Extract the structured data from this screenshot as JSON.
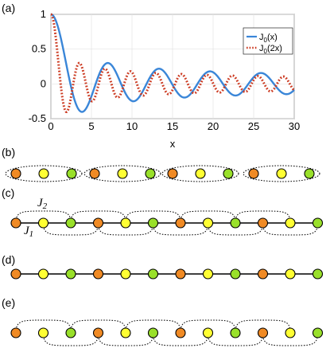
{
  "panels": {
    "a": "(a)",
    "b": "(b)",
    "c": "(c)",
    "d": "(d)",
    "e": "(e)"
  },
  "couplings": {
    "j1": "J",
    "j1_sub": "1",
    "j2": "J",
    "j2_sub": "2"
  },
  "colors": {
    "orange": "#f08a24",
    "yellow": "#ffff33",
    "green": "#99e02a",
    "series1": "#3a86d8",
    "series2": "#cc3b22"
  },
  "chart_data": {
    "type": "line",
    "xlabel": "x",
    "ylabel": "",
    "xlim": [
      0,
      30
    ],
    "ylim": [
      -0.5,
      1
    ],
    "xticks": [
      "0",
      "5",
      "10",
      "15",
      "20",
      "25",
      "30"
    ],
    "yticks": [
      "-0.5",
      "0",
      "0.5",
      "1"
    ],
    "grid": true,
    "legend_position": "top-right",
    "series": [
      {
        "name": "J",
        "name_sub": "0",
        "name_arg": "(x)",
        "function": "bessel_j0",
        "x_scale": 1,
        "style": "solid"
      },
      {
        "name": "J",
        "name_sub": "0",
        "name_arg": "(2x)",
        "function": "bessel_j0",
        "x_scale": 2,
        "style": "dotted"
      }
    ]
  }
}
